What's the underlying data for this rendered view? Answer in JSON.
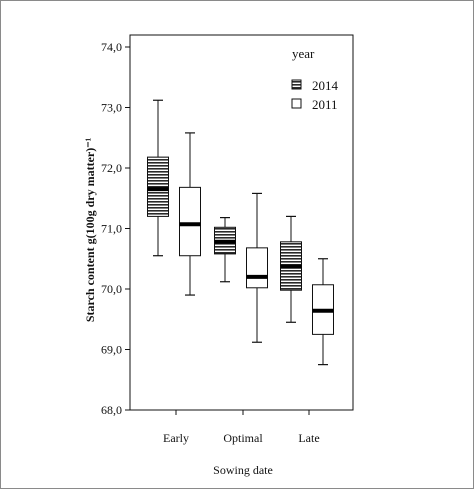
{
  "chart_data": {
    "type": "boxplot",
    "xlabel": "Sowing date",
    "ylabel": "Starch content  g(100g dry matter)⁻¹",
    "ylim": [
      68.0,
      74.0
    ],
    "yticks": [
      "68,0",
      "69,0",
      "70,0",
      "71,0",
      "72,0",
      "73,0",
      "74,0"
    ],
    "categories": [
      "Early",
      "Optimal",
      "Late"
    ],
    "legend": {
      "title": "year",
      "position": "top-right",
      "entries": [
        "2014",
        "2011"
      ]
    },
    "series": [
      {
        "name": "2014",
        "fill": "hatched",
        "boxes": [
          {
            "min": 70.55,
            "q1": 71.2,
            "median": 71.65,
            "q3": 72.18,
            "max": 73.12
          },
          {
            "min": 70.12,
            "q1": 70.58,
            "median": 70.78,
            "q3": 71.02,
            "max": 71.18
          },
          {
            "min": 69.45,
            "q1": 69.98,
            "median": 70.37,
            "q3": 70.78,
            "max": 71.2
          }
        ]
      },
      {
        "name": "2011",
        "fill": "white",
        "boxes": [
          {
            "min": 69.9,
            "q1": 70.55,
            "median": 71.07,
            "q3": 71.68,
            "max": 72.58
          },
          {
            "min": 69.12,
            "q1": 70.02,
            "median": 70.2,
            "q3": 70.68,
            "max": 71.58
          },
          {
            "min": 68.75,
            "q1": 69.25,
            "median": 69.64,
            "q3": 70.07,
            "max": 70.5
          }
        ]
      }
    ],
    "colors": {
      "box_fill_2014": "#3a3a3a",
      "box_fill_2011": "#ffffff",
      "stroke": "#111111",
      "frame": "#8a8a8a"
    }
  }
}
